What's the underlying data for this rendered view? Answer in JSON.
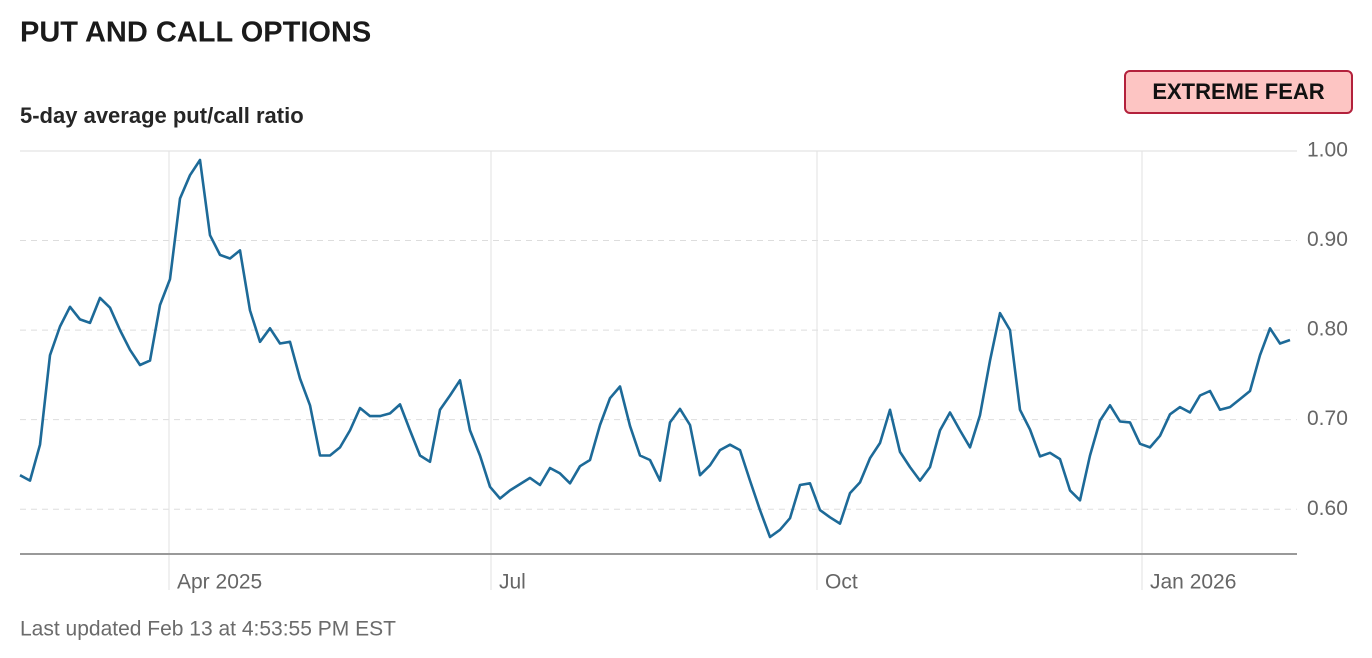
{
  "chart_data": {
    "type": "line",
    "title": "PUT AND CALL OPTIONS",
    "subtitle": "5-day average put/call ratio",
    "rating": "EXTREME FEAR",
    "footer": "Last updated Feb 13 at 4:53:55 PM EST",
    "color": "#1d6a98",
    "values": [
      0.638,
      0.632,
      0.672,
      0.772,
      0.804,
      0.826,
      0.812,
      0.808,
      0.836,
      0.825,
      0.8,
      0.778,
      0.761,
      0.766,
      0.828,
      0.857,
      0.947,
      0.973,
      0.99,
      0.906,
      0.884,
      0.88,
      0.889,
      0.822,
      0.787,
      0.802,
      0.785,
      0.787,
      0.746,
      0.716,
      0.66,
      0.66,
      0.669,
      0.688,
      0.713,
      0.704,
      0.704,
      0.707,
      0.717,
      0.688,
      0.66,
      0.653,
      0.711,
      0.727,
      0.744,
      0.688,
      0.66,
      0.625,
      0.612,
      0.621,
      0.628,
      0.635,
      0.627,
      0.646,
      0.64,
      0.629,
      0.648,
      0.655,
      0.694,
      0.724,
      0.737,
      0.693,
      0.66,
      0.655,
      0.632,
      0.697,
      0.712,
      0.694,
      0.638,
      0.649,
      0.666,
      0.672,
      0.666,
      0.632,
      0.599,
      0.569,
      0.577,
      0.59,
      0.627,
      0.629,
      0.599,
      0.591,
      0.584,
      0.618,
      0.63,
      0.657,
      0.674,
      0.711,
      0.664,
      0.647,
      0.632,
      0.647,
      0.688,
      0.708,
      0.688,
      0.669,
      0.705,
      0.766,
      0.819,
      0.8,
      0.711,
      0.689,
      0.659,
      0.663,
      0.656,
      0.621,
      0.61,
      0.66,
      0.699,
      0.716,
      0.698,
      0.697,
      0.673,
      0.669,
      0.682,
      0.706,
      0.714,
      0.708,
      0.727,
      0.732,
      0.711,
      0.714,
      0.723,
      0.732,
      0.772,
      0.802,
      0.785,
      0.789
    ],
    "xlim": [
      0,
      127.7
    ],
    "xticks": [
      {
        "value": 14.9,
        "label": "Apr 2025"
      },
      {
        "value": 47.1,
        "label": "Jul"
      },
      {
        "value": 79.7,
        "label": "Oct"
      },
      {
        "value": 112.2,
        "label": "Jan 2026"
      }
    ],
    "ylim": [
      0.55,
      1.0
    ],
    "yticks": [
      {
        "value": 0.6,
        "label": "0.60"
      },
      {
        "value": 0.7,
        "label": "0.70"
      },
      {
        "value": 0.8,
        "label": "0.80"
      },
      {
        "value": 0.9,
        "label": "0.90"
      },
      {
        "value": 1.0,
        "label": "1.00"
      }
    ],
    "grid": true
  }
}
